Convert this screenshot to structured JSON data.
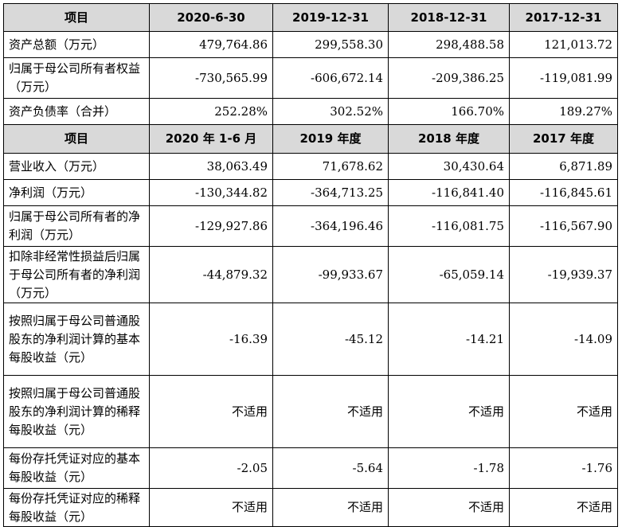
{
  "table": {
    "header1": [
      "项目",
      "2020-6-30",
      "2019-12-31",
      "2018-12-31",
      "2017-12-31"
    ],
    "section1_rows": [
      {
        "label": "资产总额（万元）",
        "values": [
          "479,764.86",
          "299,558.30",
          "298,488.58",
          "121,013.72"
        ]
      },
      {
        "label": "归属于母公司所有者权益（万元）",
        "values": [
          "-730,565.99",
          "-606,672.14",
          "-209,386.25",
          "-119,081.99"
        ]
      },
      {
        "label": "资产负债率（合并）",
        "values": [
          "252.28%",
          "302.52%",
          "166.70%",
          "189.27%"
        ]
      }
    ],
    "header2": [
      "项目",
      "2020 年 1-6 月",
      "2019 年度",
      "2018 年度",
      "2017 年度"
    ],
    "section2_rows": [
      {
        "label": "营业收入（万元）",
        "values": [
          "38,063.49",
          "71,678.62",
          "30,430.64",
          "6,871.89"
        ]
      },
      {
        "label": "净利润（万元）",
        "values": [
          "-130,344.82",
          "-364,713.25",
          "-116,841.40",
          "-116,845.61"
        ]
      },
      {
        "label": "归属于母公司所有者的净利润（万元）",
        "values": [
          "-129,927.86",
          "-364,196.46",
          "-116,081.75",
          "-116,567.90"
        ]
      },
      {
        "label": "扣除非经常性损益后归属于母公司所有者的净利润（万元）",
        "values": [
          "-44,879.32",
          "-99,933.67",
          "-65,059.14",
          "-19,939.37"
        ]
      },
      {
        "label": "按照归属于母公司普通股股东的净利润计算的基本每股收益（元）",
        "values": [
          "-16.39",
          "-45.12",
          "-14.21",
          "-14.09"
        ]
      },
      {
        "label": "按照归属于母公司普通股股东的净利润计算的稀释每股收益（元）",
        "values": [
          "不适用",
          "不适用",
          "不适用",
          "不适用"
        ]
      },
      {
        "label": "每份存托凭证对应的基本每股收益（元）",
        "values": [
          "-2.05",
          "-5.64",
          "-1.78",
          "-1.76"
        ]
      },
      {
        "label": "每份存托凭证对应的稀释每股收益（元）",
        "values": [
          "不适用",
          "不适用",
          "不适用",
          "不适用"
        ]
      }
    ]
  }
}
